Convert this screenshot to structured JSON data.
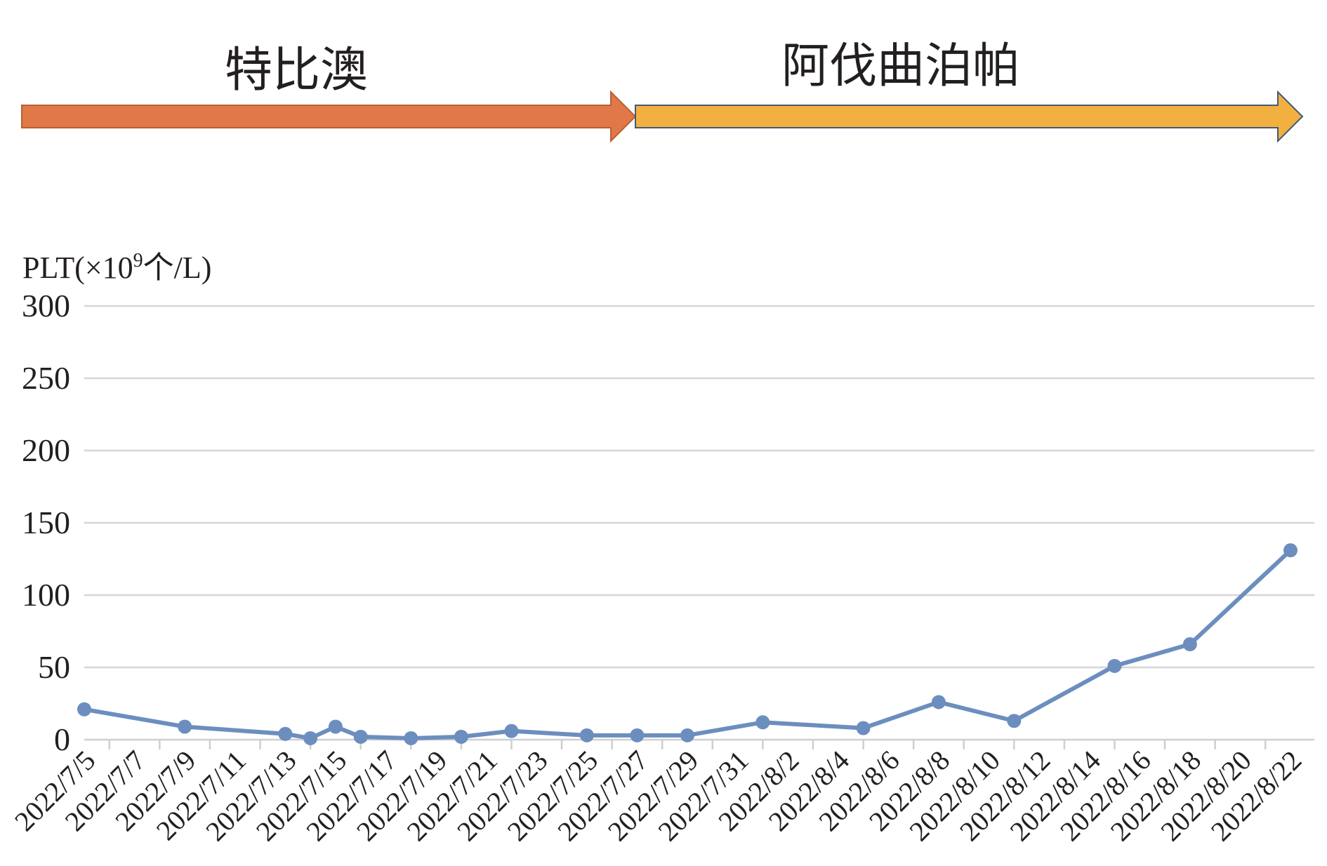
{
  "phases": [
    {
      "label": "特比澳",
      "color": "#e07848",
      "border": "#b95f34"
    },
    {
      "label": "阿伐曲泊帕",
      "color": "#f2b041",
      "border": "#41597a"
    }
  ],
  "chart_data": {
    "type": "line",
    "ylabel": "PLT(×10",
    "ylabel_exp": "9",
    "ylabel_unit": "个/L)",
    "ylim": [
      0,
      300
    ],
    "yticks": [
      0,
      50,
      100,
      150,
      200,
      250,
      300
    ],
    "grid": true,
    "line_color": "#6c8ebf",
    "xticks": [
      "2022/7/5",
      "2022/7/7",
      "2022/7/9",
      "2022/7/11",
      "2022/7/13",
      "2022/7/15",
      "2022/7/17",
      "2022/7/19",
      "2022/7/21",
      "2022/7/23",
      "2022/7/25",
      "2022/7/27",
      "2022/7/29",
      "2022/7/31",
      "2022/8/2",
      "2022/8/4",
      "2022/8/6",
      "2022/8/8",
      "2022/8/10",
      "2022/8/12",
      "2022/8/14",
      "2022/8/16",
      "2022/8/18",
      "2022/8/20",
      "2022/8/22"
    ],
    "series": [
      {
        "points": [
          {
            "x": "2022/7/5",
            "y": 21
          },
          {
            "x": "2022/7/9",
            "y": 9
          },
          {
            "x": "2022/7/13",
            "y": 4
          },
          {
            "x": "2022/7/14",
            "y": 1
          },
          {
            "x": "2022/7/15",
            "y": 9
          },
          {
            "x": "2022/7/16",
            "y": 2
          },
          {
            "x": "2022/7/18",
            "y": 1
          },
          {
            "x": "2022/7/20",
            "y": 2
          },
          {
            "x": "2022/7/22",
            "y": 6
          },
          {
            "x": "2022/7/25",
            "y": 3
          },
          {
            "x": "2022/7/27",
            "y": 3
          },
          {
            "x": "2022/7/29",
            "y": 3
          },
          {
            "x": "2022/8/1",
            "y": 12
          },
          {
            "x": "2022/8/5",
            "y": 8
          },
          {
            "x": "2022/8/8",
            "y": 26
          },
          {
            "x": "2022/8/11",
            "y": 13
          },
          {
            "x": "2022/8/15",
            "y": 51
          },
          {
            "x": "2022/8/18",
            "y": 66
          },
          {
            "x": "2022/8/22",
            "y": 131
          }
        ]
      }
    ]
  }
}
